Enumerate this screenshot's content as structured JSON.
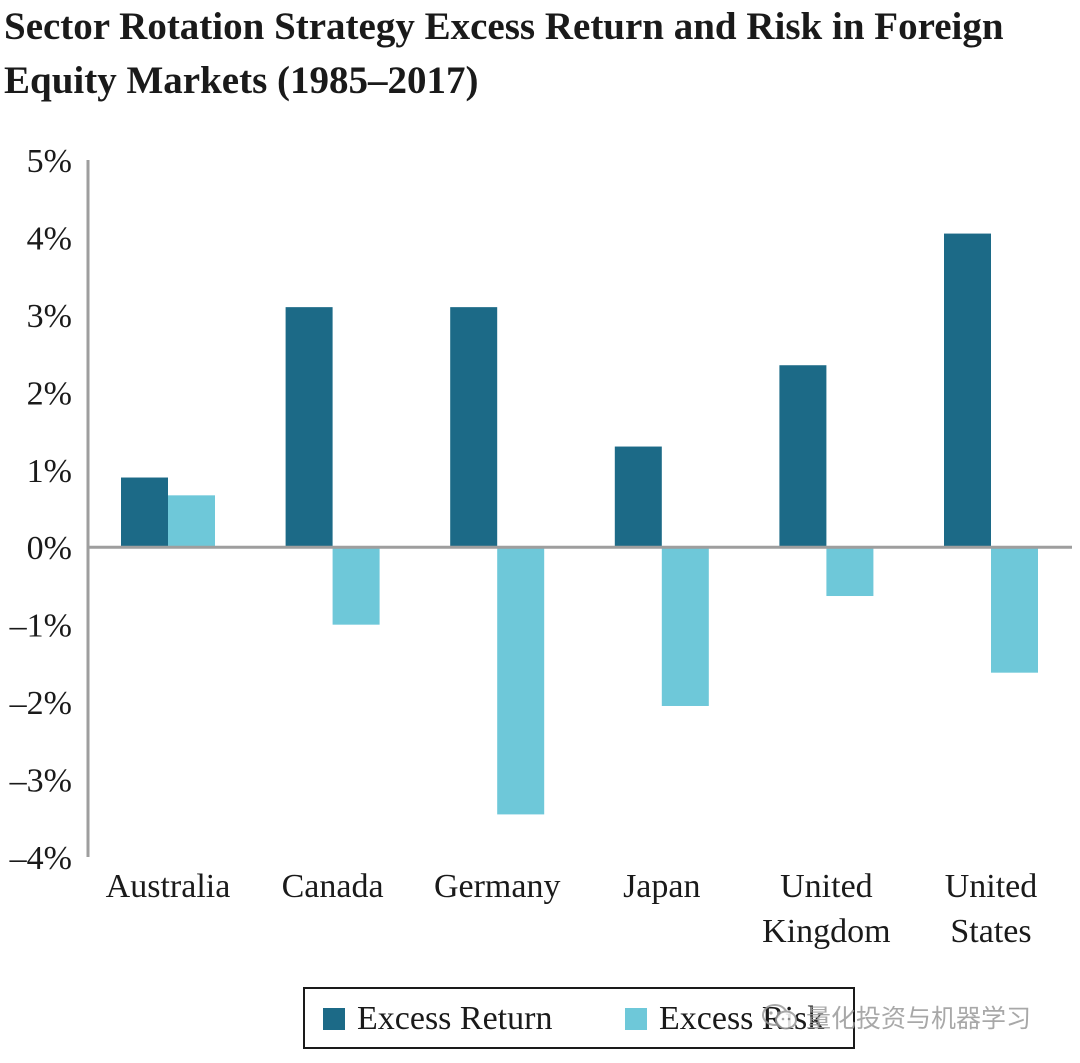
{
  "chart_data": {
    "type": "bar",
    "title": "Sector Rotation Strategy Excess Return and Risk in Foreign Equity Markets (1985–2017)",
    "categories": [
      [
        "Australia"
      ],
      [
        "Canada"
      ],
      [
        "Germany"
      ],
      [
        "Japan"
      ],
      [
        "United",
        "Kingdom"
      ],
      [
        "United",
        "States"
      ]
    ],
    "series": [
      {
        "name": "Excess Return",
        "color": "#1c6a87",
        "values": [
          0.9,
          3.1,
          3.1,
          1.3,
          2.35,
          4.05
        ]
      },
      {
        "name": "Excess Risk",
        "color": "#6ec8d9",
        "values": [
          0.67,
          -1.0,
          -3.45,
          -2.05,
          -0.63,
          -1.62
        ]
      }
    ],
    "ylim": [
      -4,
      5
    ],
    "yticks": [
      5,
      4,
      3,
      2,
      1,
      0,
      -1,
      -2,
      -3,
      -4
    ],
    "ytick_labels": [
      "5%",
      "4%",
      "3%",
      "2%",
      "1%",
      "0%",
      "–1%",
      "–2%",
      "–3%",
      "–4%"
    ],
    "xlabel": "",
    "ylabel": "",
    "grid": false,
    "legend_position": "bottom-center"
  },
  "watermark": {
    "text": "量化投资与机器学习",
    "icon": "wechat-icon"
  }
}
